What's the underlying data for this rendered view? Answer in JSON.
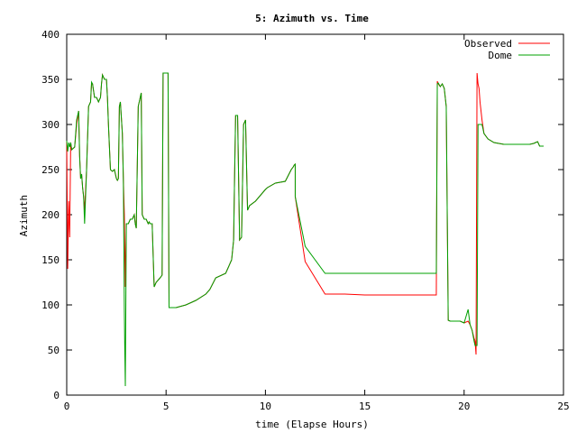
{
  "chart_data": {
    "type": "line",
    "title": "5: Azimuth vs. Time",
    "xlabel": "time (Elapse Hours)",
    "ylabel": "Azimuth",
    "xlim": [
      0,
      25
    ],
    "ylim": [
      0,
      400
    ],
    "xticks": [
      0,
      5,
      10,
      15,
      20,
      25
    ],
    "yticks": [
      0,
      50,
      100,
      150,
      200,
      250,
      300,
      350,
      400
    ],
    "xtick_labels": [
      "0",
      "5",
      "10",
      "15",
      "20",
      "25"
    ],
    "ytick_labels": [
      "0",
      "50",
      "100",
      "150",
      "200",
      "250",
      "300",
      "350",
      "400"
    ],
    "legend_position": "top-right",
    "grid": false,
    "series": [
      {
        "name": "Observed",
        "color": "#ff0000",
        "x": [
          0,
          0.05,
          0.1,
          0.15,
          0.2,
          0.25,
          0.4,
          0.5,
          0.6,
          0.65,
          0.7,
          0.75,
          0.8,
          0.85,
          0.9,
          1.0,
          1.1,
          1.2,
          1.25,
          1.3,
          1.4,
          1.5,
          1.6,
          1.7,
          1.75,
          1.8,
          1.9,
          2.0,
          2.05,
          2.1,
          2.2,
          2.3,
          2.4,
          2.5,
          2.55,
          2.6,
          2.65,
          2.7,
          2.8,
          2.85,
          2.9,
          2.95,
          3.0,
          3.1,
          3.2,
          3.3,
          3.4,
          3.45,
          3.5,
          3.6,
          3.65,
          3.7,
          3.75,
          3.8,
          3.9,
          4.0,
          4.1,
          4.15,
          4.2,
          4.3,
          4.4,
          4.5,
          4.7,
          4.8,
          4.85,
          5.0,
          5.1,
          5.15,
          5.5,
          6.0,
          6.5,
          7.0,
          7.2,
          7.5,
          8.0,
          8.3,
          8.4,
          8.45,
          8.5,
          8.6,
          8.7,
          8.8,
          8.9,
          9.0,
          9.1,
          9.2,
          9.5,
          10.0,
          10.1,
          10.5,
          11.0,
          11.3,
          11.4,
          11.45,
          11.5,
          11.5,
          12.0,
          13.0,
          14.0,
          15.0,
          16.0,
          17.0,
          18.0,
          18.5,
          18.55,
          18.6,
          18.65,
          18.7,
          18.8,
          18.9,
          19.0,
          19.1,
          19.2,
          19.3,
          19.5,
          19.8,
          20.0,
          20.2,
          20.3,
          20.4,
          20.5,
          20.55,
          20.6,
          20.65,
          20.7,
          20.75,
          20.8,
          20.9,
          21.0,
          21.2,
          21.5,
          22.0,
          22.5,
          23.0,
          23.3,
          23.5,
          23.6,
          23.7,
          23.8,
          24.0
        ],
        "y": [
          282,
          140,
          215,
          175,
          280,
          272,
          275,
          300,
          315,
          265,
          240,
          245,
          230,
          220,
          205,
          250,
          320,
          325,
          345,
          345,
          330,
          330,
          325,
          330,
          345,
          355,
          350,
          350,
          330,
          300,
          250,
          248,
          250,
          240,
          238,
          240,
          320,
          325,
          290,
          240,
          200,
          120,
          190,
          190,
          195,
          195,
          200,
          190,
          185,
          320,
          325,
          330,
          335,
          200,
          195,
          195,
          190,
          192,
          190,
          190,
          120,
          125,
          130,
          133,
          357,
          357,
          357,
          97,
          97,
          100,
          105,
          112,
          117,
          130,
          135,
          150,
          172,
          245,
          310,
          310,
          172,
          175,
          300,
          305,
          205,
          210,
          215,
          228,
          230,
          235,
          237,
          250,
          253,
          255,
          256,
          220,
          148,
          112,
          112,
          111,
          111,
          111,
          111,
          111,
          111,
          111,
          348,
          345,
          342,
          345,
          340,
          320,
          83,
          82,
          82,
          82,
          80,
          82,
          78,
          72,
          63,
          60,
          45,
          357,
          345,
          340,
          325,
          305,
          290,
          284,
          280,
          278,
          278,
          278,
          278,
          279,
          280,
          281,
          276,
          276
        ],
        "comment": ""
      },
      {
        "name": "Dome",
        "color": "#00a000",
        "x": [
          0,
          0.05,
          0.1,
          0.15,
          0.2,
          0.25,
          0.4,
          0.5,
          0.6,
          0.65,
          0.7,
          0.75,
          0.8,
          0.85,
          0.9,
          1.0,
          1.1,
          1.2,
          1.25,
          1.3,
          1.4,
          1.5,
          1.6,
          1.7,
          1.75,
          1.8,
          1.9,
          2.0,
          2.05,
          2.1,
          2.2,
          2.3,
          2.4,
          2.5,
          2.55,
          2.6,
          2.65,
          2.7,
          2.8,
          2.85,
          2.9,
          2.92,
          2.95,
          3.0,
          3.1,
          3.2,
          3.3,
          3.4,
          3.45,
          3.5,
          3.6,
          3.65,
          3.7,
          3.75,
          3.8,
          3.9,
          4.0,
          4.1,
          4.15,
          4.2,
          4.3,
          4.4,
          4.5,
          4.7,
          4.8,
          4.85,
          5.0,
          5.1,
          5.15,
          5.5,
          6.0,
          6.5,
          7.0,
          7.2,
          7.5,
          8.0,
          8.3,
          8.4,
          8.45,
          8.5,
          8.6,
          8.7,
          8.8,
          8.9,
          9.0,
          9.1,
          9.2,
          9.5,
          10.0,
          10.1,
          10.5,
          11.0,
          11.3,
          11.4,
          11.45,
          11.5,
          11.5,
          12.0,
          13.0,
          14.0,
          15.0,
          16.0,
          17.0,
          18.0,
          18.5,
          18.55,
          18.6,
          18.65,
          18.7,
          18.8,
          18.9,
          19.0,
          19.1,
          19.2,
          19.3,
          19.5,
          19.8,
          20.0,
          20.2,
          20.3,
          20.4,
          20.5,
          20.55,
          20.6,
          20.65,
          20.7,
          20.75,
          20.8,
          20.9,
          21.0,
          21.2,
          21.5,
          22.0,
          22.5,
          23.0,
          23.3,
          23.5,
          23.6,
          23.7,
          23.8,
          24.0
        ],
        "y": [
          282,
          270,
          280,
          275,
          280,
          272,
          275,
          305,
          315,
          265,
          240,
          245,
          230,
          220,
          190,
          250,
          320,
          325,
          347,
          345,
          330,
          330,
          325,
          330,
          345,
          355,
          350,
          350,
          330,
          300,
          250,
          248,
          250,
          240,
          238,
          240,
          320,
          325,
          290,
          240,
          95,
          55,
          10,
          190,
          190,
          195,
          195,
          200,
          190,
          185,
          320,
          325,
          330,
          335,
          200,
          195,
          195,
          190,
          192,
          190,
          190,
          120,
          125,
          130,
          133,
          357,
          357,
          357,
          97,
          97,
          100,
          105,
          112,
          117,
          130,
          135,
          150,
          172,
          245,
          310,
          310,
          172,
          175,
          300,
          305,
          205,
          210,
          215,
          228,
          230,
          235,
          237,
          250,
          253,
          255,
          256,
          220,
          165,
          135,
          135,
          135,
          135,
          135,
          135,
          135,
          135,
          135,
          345,
          346,
          342,
          345,
          340,
          320,
          83,
          82,
          82,
          82,
          80,
          95,
          78,
          72,
          60,
          55,
          55,
          55,
          300,
          300,
          300,
          300,
          290,
          284,
          280,
          278,
          278,
          278,
          278,
          279,
          280,
          281,
          276,
          276
        ]
      }
    ]
  }
}
